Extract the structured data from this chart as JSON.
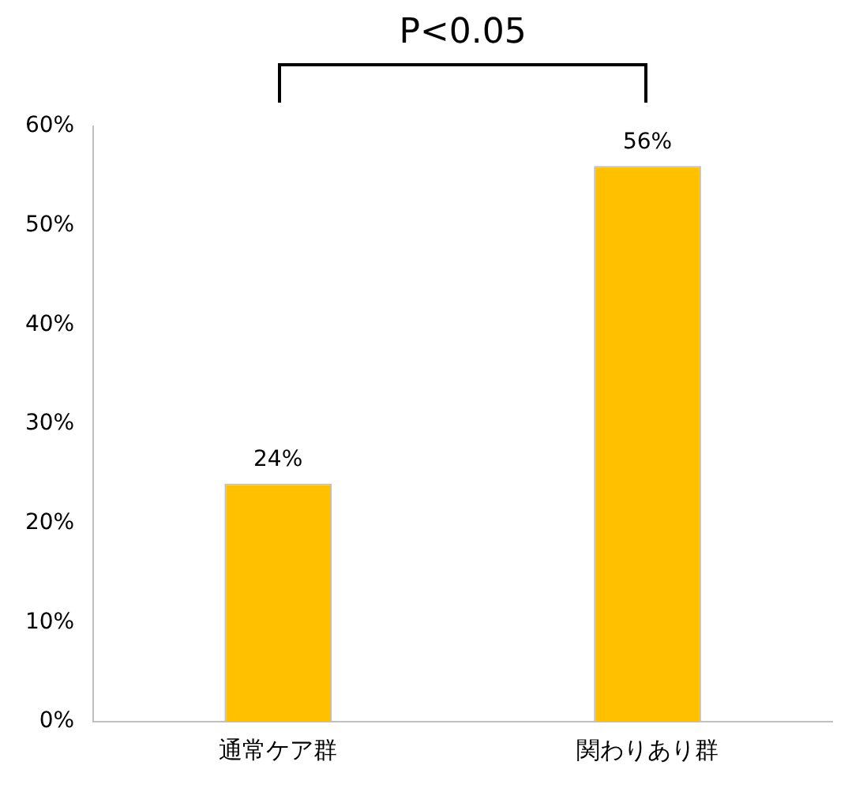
{
  "chart_data": {
    "type": "bar",
    "categories": [
      "通常ケア群",
      "関わりあり群"
    ],
    "values": [
      24,
      56
    ],
    "color": "#ffc000",
    "value_labels": [
      "24%",
      "56%"
    ],
    "ylim": [
      0,
      60
    ],
    "yticks": [
      {
        "value": 0,
        "label": "0%"
      },
      {
        "value": 10,
        "label": "10%"
      },
      {
        "value": 20,
        "label": "20%"
      },
      {
        "value": 30,
        "label": "30%"
      },
      {
        "value": 40,
        "label": "40%"
      },
      {
        "value": 50,
        "label": "50%"
      },
      {
        "value": 60,
        "label": "60%"
      }
    ],
    "grid": false,
    "legend": false,
    "annotations": [
      "P<0.05"
    ]
  }
}
